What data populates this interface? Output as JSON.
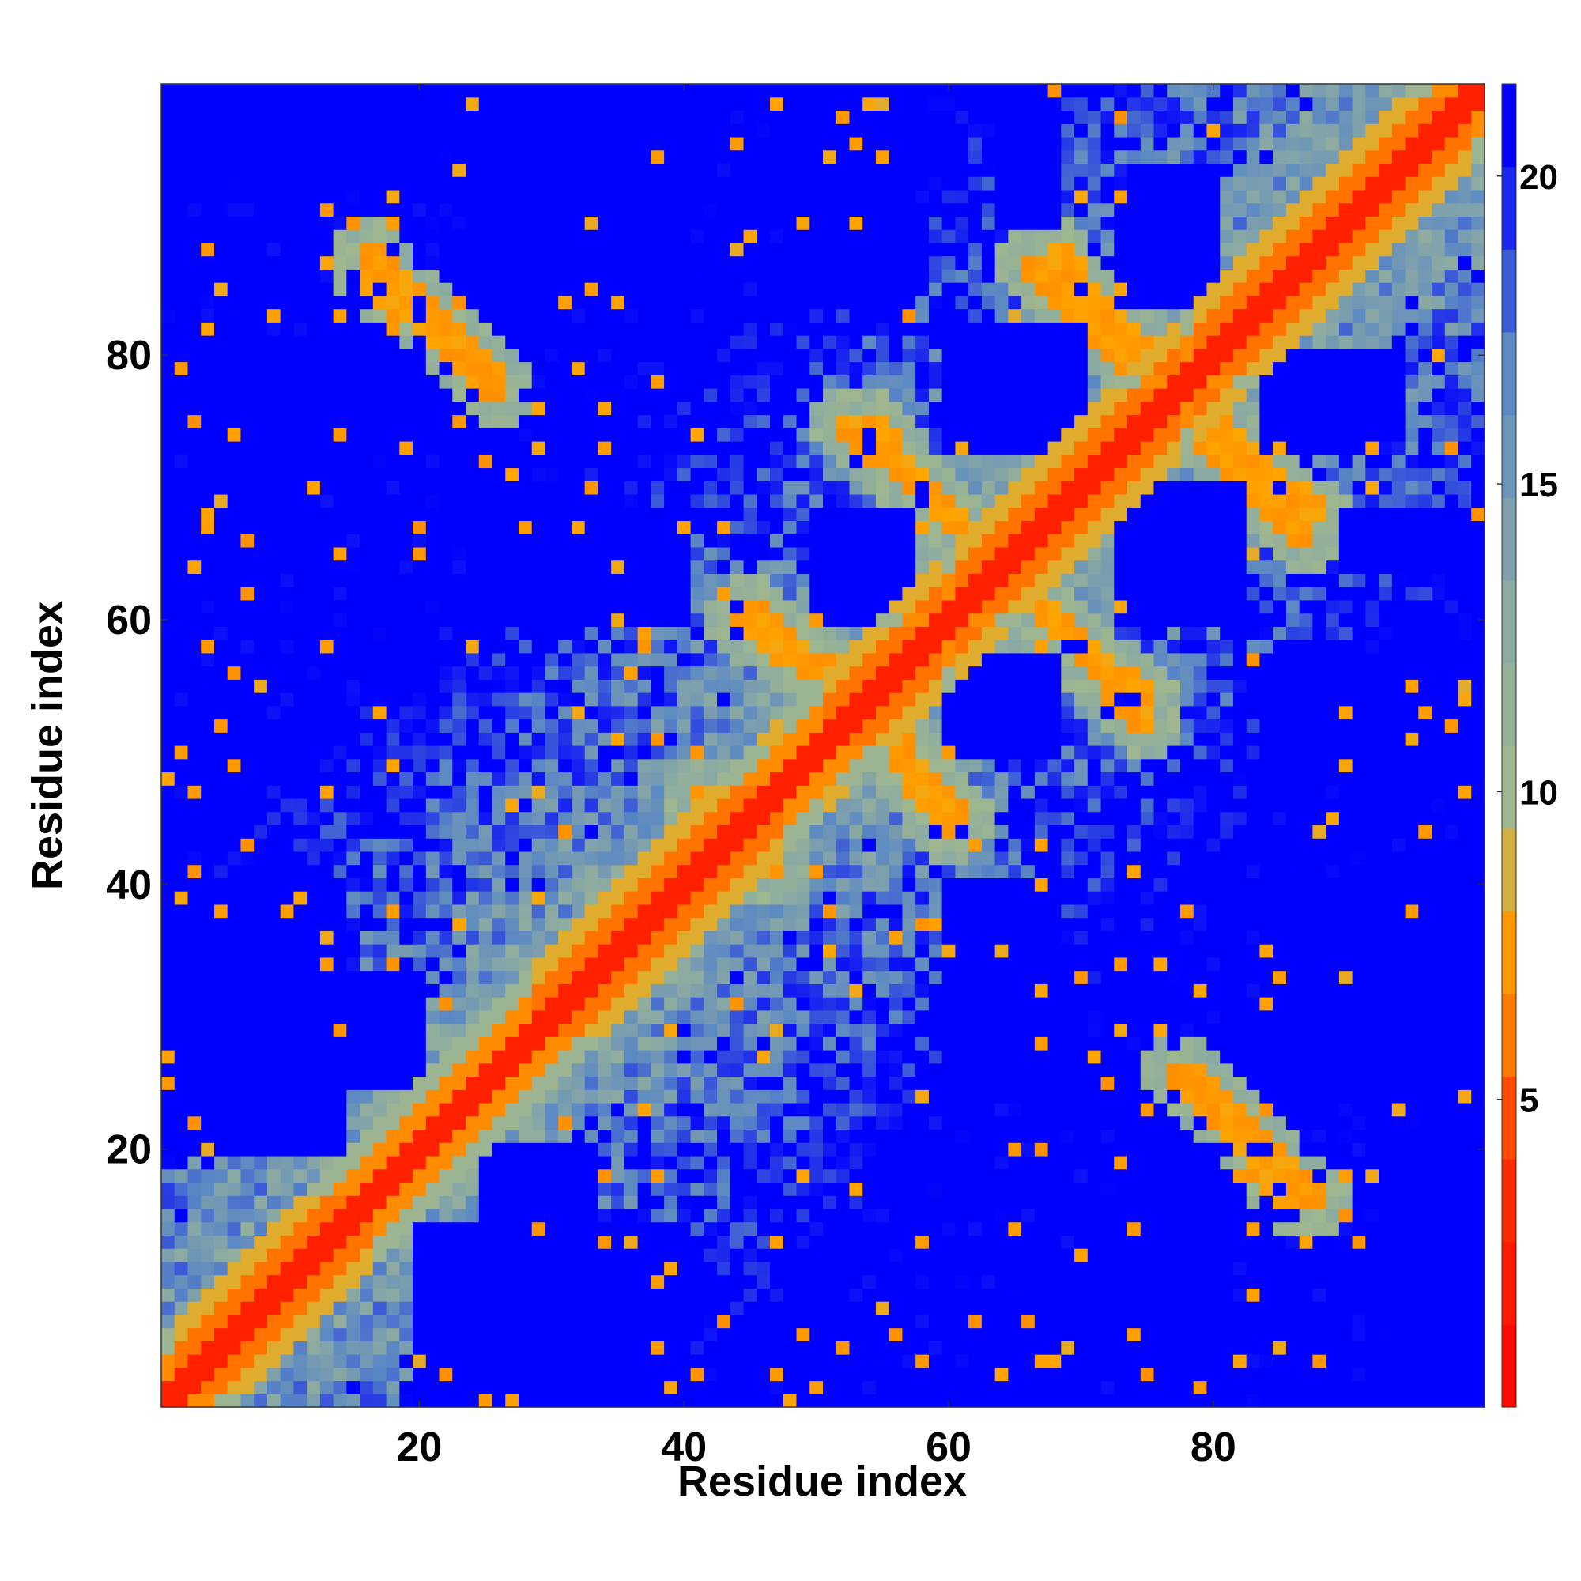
{
  "chart_data": {
    "type": "heatmap",
    "title": "",
    "xlabel": "Residue index",
    "ylabel": "Residue index",
    "n_residues": 100,
    "xlim": [
      1,
      100
    ],
    "ylim": [
      1,
      100
    ],
    "x_ticks": [
      20,
      40,
      60,
      80
    ],
    "y_ticks": [
      20,
      40,
      60,
      80
    ],
    "colorbar": {
      "label": "",
      "range": [
        0,
        21.5
      ],
      "ticks": [
        5,
        10,
        15,
        20
      ],
      "stops": [
        {
          "value": 0,
          "color": "#ff0000"
        },
        {
          "value": 4,
          "color": "#ff3300"
        },
        {
          "value": 6,
          "color": "#ff7a00"
        },
        {
          "value": 8,
          "color": "#ffa500"
        },
        {
          "value": 9.5,
          "color": "#a3b98b"
        },
        {
          "value": 13,
          "color": "#8aa9a3"
        },
        {
          "value": 17,
          "color": "#5b88c4"
        },
        {
          "value": 20.5,
          "color": "#0000ff"
        }
      ]
    },
    "secondary_structure": {
      "helices": [
        [
          2,
          16
        ],
        [
          29,
          47
        ],
        [
          51,
          59
        ],
        [
          61,
          77
        ],
        [
          79,
          99
        ]
      ],
      "cross_contacts": [
        {
          "from": [
            16,
            88
          ],
          "to": [
            26,
            78
          ],
          "value": 7
        },
        {
          "from": [
            52,
            75
          ],
          "to": [
            62,
            66
          ],
          "value": 7
        },
        {
          "from": [
            45,
            61
          ],
          "to": [
            52,
            55
          ],
          "value": 7
        },
        {
          "from": [
            68,
            88
          ],
          "to": [
            76,
            79
          ],
          "value": 7
        },
        {
          "from": [
            78,
            75
          ],
          "to": [
            87,
            66
          ],
          "value": 7
        },
        {
          "from": [
            64,
            63
          ],
          "to": [
            75,
            54
          ],
          "value": 7
        },
        {
          "from": [
            54,
            53
          ],
          "to": [
            60,
            44
          ],
          "value": 7
        },
        {
          "from": [
            77,
            26
          ],
          "to": [
            86,
            16
          ],
          "value": 7
        },
        {
          "from": [
            40,
            41
          ],
          "to": [
            47,
            41
          ],
          "value": 7
        }
      ],
      "far_domains": [
        {
          "x": [
            24,
            33
          ],
          "y": [
            85,
            100
          ]
        },
        {
          "x": [
            48,
            56
          ],
          "y": [
            84,
            100
          ]
        },
        {
          "x": [
            64,
            68
          ],
          "y": [
            90,
            100
          ]
        },
        {
          "x": [
            74,
            80
          ],
          "y": [
            84,
            94
          ]
        },
        {
          "x": [
            3,
            17
          ],
          "y": [
            75,
            80
          ]
        },
        {
          "x": [
            62,
            70
          ],
          "y": [
            73,
            80
          ]
        },
        {
          "x": [
            84,
            92
          ],
          "y": [
            73,
            80
          ]
        },
        {
          "x": [
            24,
            35
          ],
          "y": [
            60,
            70
          ]
        },
        {
          "x": [
            50,
            56
          ],
          "y": [
            60,
            68
          ]
        },
        {
          "x": [
            73,
            82
          ],
          "y": [
            60,
            70
          ]
        },
        {
          "x": [
            62,
            68
          ],
          "y": [
            50,
            57
          ]
        },
        {
          "x": [
            86,
            100
          ],
          "y": [
            48,
            57
          ]
        },
        {
          "x": [
            1,
            14
          ],
          "y": [
            20,
            40
          ]
        },
        {
          "x": [
            60,
            68
          ],
          "y": [
            26,
            40
          ]
        },
        {
          "x": [
            84,
            100
          ],
          "y": [
            26,
            40
          ]
        },
        {
          "x": [
            25,
            33
          ],
          "y": [
            1,
            20
          ]
        },
        {
          "x": [
            74,
            80
          ],
          "y": [
            1,
            20
          ]
        },
        {
          "x": [
            94,
            100
          ],
          "y": [
            1,
            20
          ]
        }
      ]
    }
  }
}
